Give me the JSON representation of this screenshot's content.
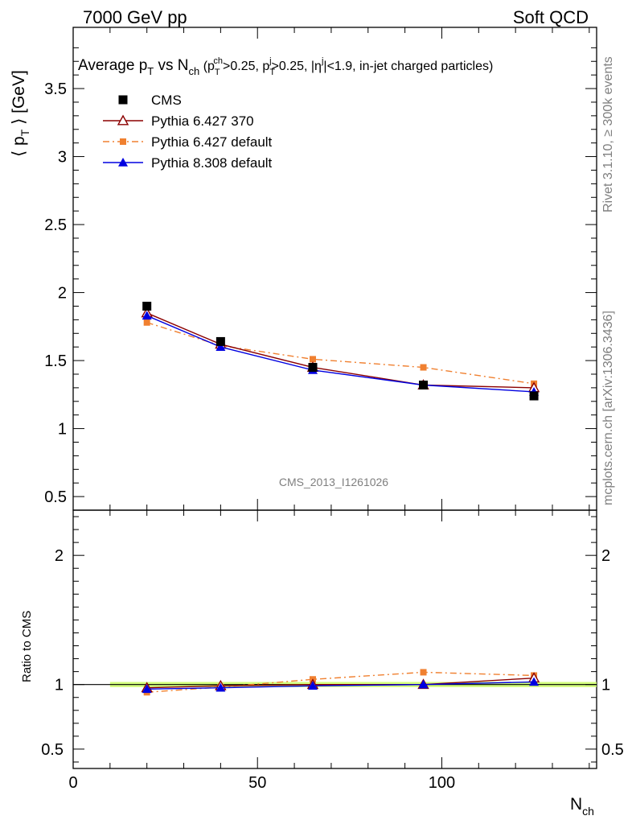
{
  "header": {
    "left": "7000 GeV pp",
    "right": "Soft QCD"
  },
  "side_text": {
    "rivet": "Rivet 3.1.10, ≥ 300k events",
    "mcplots": "mcplots.cern.ch [arXiv:1306.3436]"
  },
  "analysis_label": "CMS_2013_I1261026",
  "chart_data": {
    "type": "line",
    "title": "Average p_T vs N_ch (p_T^ch>0.25, p_T^j>0.25, |η^j|<1.9, in-jet charged particles)",
    "xlabel": "N_ch",
    "ylabel": "⟨ p_T ⟩ [GeV]",
    "ratio_ylabel": "Ratio to CMS",
    "xlim": [
      0,
      142
    ],
    "ylim": [
      0.4,
      3.95
    ],
    "ratio_ylim": [
      0.35,
      2.35
    ],
    "x": [
      20,
      40,
      65,
      95,
      125
    ],
    "xticks": [
      "0",
      "50",
      "100"
    ],
    "yticks": [
      "0.5",
      "1",
      "1.5",
      "2",
      "2.5",
      "3",
      "3.5"
    ],
    "ratio_yticks": [
      "0.5",
      "1",
      "2"
    ],
    "legend_position": "top-left",
    "series": [
      {
        "name": "CMS",
        "color": "#000000",
        "marker": "square",
        "values": [
          1.9,
          1.64,
          1.45,
          1.32,
          1.24
        ]
      },
      {
        "name": "Pythia 6.427 370",
        "color": "#8b0000",
        "marker": "open-triangle",
        "line": "solid",
        "values": [
          1.85,
          1.62,
          1.45,
          1.32,
          1.3
        ],
        "ratio": [
          0.975,
          0.99,
          1.0,
          1.0,
          1.05
        ]
      },
      {
        "name": "Pythia 6.427 default",
        "color": "#f08030",
        "marker": "square",
        "line": "dashdot",
        "values": [
          1.78,
          1.61,
          1.51,
          1.45,
          1.33
        ],
        "ratio": [
          0.94,
          0.98,
          1.04,
          1.095,
          1.07
        ]
      },
      {
        "name": "Pythia 8.308 default",
        "color": "#0000e0",
        "marker": "triangle",
        "line": "solid",
        "values": [
          1.83,
          1.6,
          1.43,
          1.32,
          1.27
        ],
        "ratio": [
          0.965,
          0.975,
          0.99,
          1.0,
          1.02
        ]
      }
    ]
  }
}
